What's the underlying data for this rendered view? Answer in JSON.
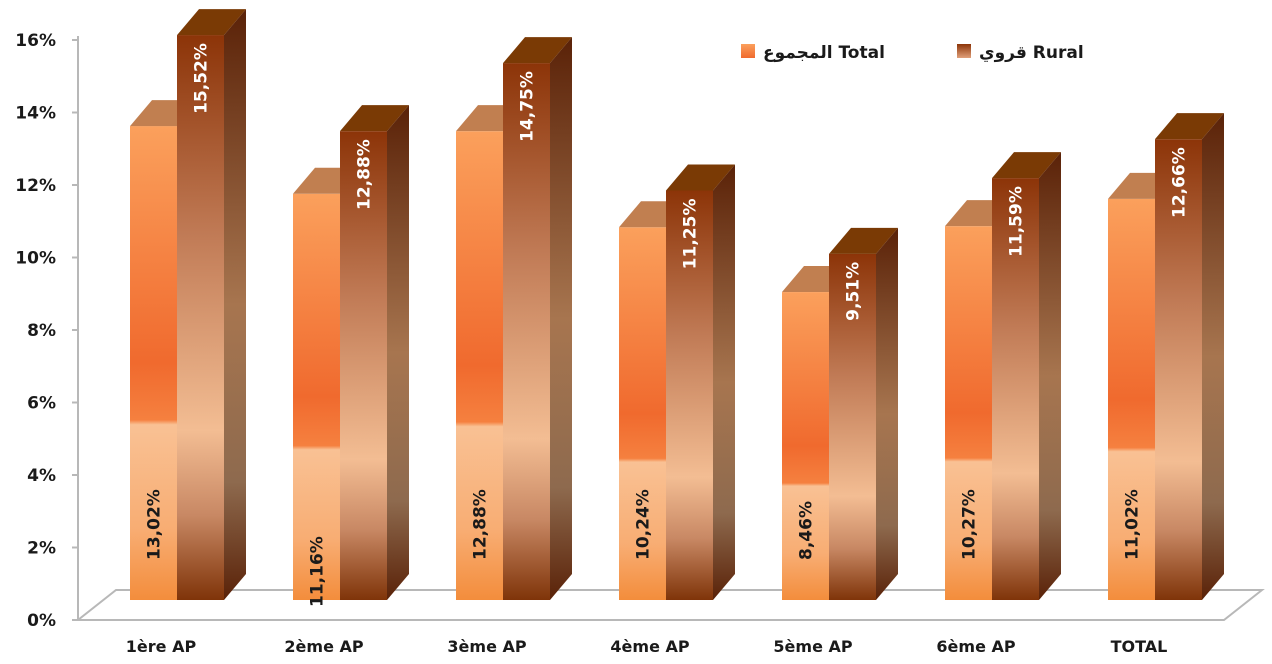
{
  "chart_data": {
    "type": "bar",
    "categories": [
      "1ère AP",
      "2ème AP",
      "3ème AP",
      "4ème AP",
      "5ème AP",
      "6ème AP",
      "TOTAL"
    ],
    "series": [
      {
        "name": "المجموع Total",
        "values": [
          13.02,
          11.16,
          12.88,
          10.24,
          8.46,
          10.27,
          11.02
        ],
        "labels": [
          "13,02%",
          "11,16%",
          "12,88%",
          "10,24%",
          "8,46%",
          "10,27%",
          "11,02%"
        ],
        "color": "#F28C40"
      },
      {
        "name": "قروي Rural",
        "values": [
          15.52,
          12.88,
          14.75,
          11.25,
          9.51,
          11.59,
          12.66
        ],
        "labels": [
          "15,52%",
          "12,88%",
          "14,75%",
          "11,25%",
          "9,51%",
          "11,59%",
          "12,66%"
        ],
        "color": "#8B3A12"
      }
    ],
    "y_ticks": [
      "0%",
      "2%",
      "4%",
      "6%",
      "8%",
      "10%",
      "12%",
      "14%",
      "16%"
    ],
    "ylim": [
      0,
      16
    ],
    "three_d": true,
    "grid": false,
    "legend_position": "top-right"
  }
}
